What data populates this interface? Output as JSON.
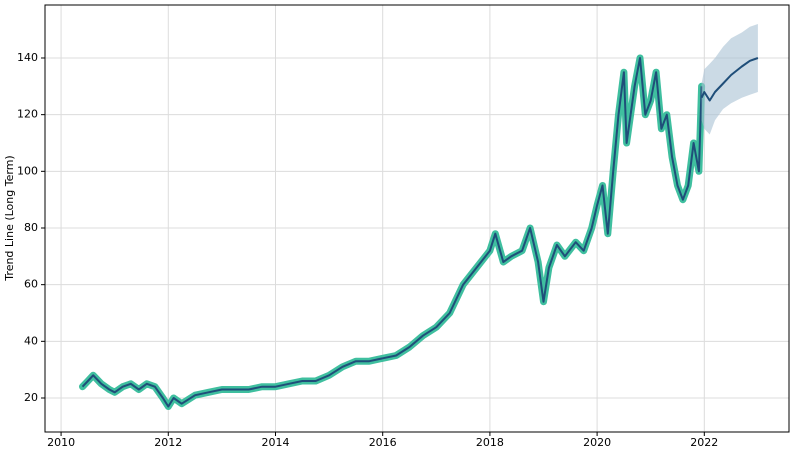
{
  "chart_data": {
    "type": "line",
    "y_label": "Trend Line (Long Term)",
    "xlim": [
      2009.7,
      2023.58
    ],
    "xticks": [
      2010,
      2012,
      2014,
      2016,
      2018,
      2020,
      2022
    ],
    "ylim": [
      8,
      158.7
    ],
    "yticks": [
      20,
      40,
      60,
      80,
      100,
      120,
      140
    ],
    "grid": true,
    "x": [
      2010.4,
      2010.5,
      2010.6,
      2010.75,
      2010.9,
      2011.0,
      2011.15,
      2011.3,
      2011.45,
      2011.6,
      2011.75,
      2011.9,
      2012.0,
      2012.1,
      2012.25,
      2012.5,
      2012.75,
      2013.0,
      2013.25,
      2013.5,
      2013.75,
      2014.0,
      2014.25,
      2014.5,
      2014.75,
      2015.0,
      2015.25,
      2015.5,
      2015.75,
      2016.0,
      2016.25,
      2016.5,
      2016.75,
      2017.0,
      2017.25,
      2017.5,
      2017.75,
      2018.0,
      2018.1,
      2018.25,
      2018.4,
      2018.6,
      2018.75,
      2018.9,
      2019.0,
      2019.1,
      2019.25,
      2019.4,
      2019.6,
      2019.75,
      2019.9,
      2020.0,
      2020.1,
      2020.2,
      2020.3,
      2020.4,
      2020.5,
      2020.55,
      2020.7,
      2020.8,
      2020.9,
      2021.0,
      2021.1,
      2021.2,
      2021.3,
      2021.4,
      2021.5,
      2021.6,
      2021.7,
      2021.8,
      2021.9,
      2021.95,
      2022.0,
      2022.1,
      2022.2,
      2022.35,
      2022.5,
      2022.7,
      2022.85,
      2023.0
    ],
    "series": [
      {
        "color": "#3fbf9f",
        "line_color": "#1f4e79",
        "values": [
          24,
          26,
          28,
          25,
          23,
          22,
          24,
          25,
          23,
          25,
          24,
          20,
          17,
          20,
          18,
          21,
          22,
          23,
          23,
          23,
          24,
          24,
          25,
          26,
          26,
          28,
          31,
          33,
          33,
          34,
          35,
          38,
          42,
          45,
          50,
          60,
          66,
          72,
          78,
          68,
          70,
          72,
          80,
          68,
          54,
          66,
          74,
          70,
          75,
          72,
          80,
          88,
          95,
          78,
          100,
          120,
          135,
          110,
          130,
          140,
          120,
          125,
          135,
          115,
          120,
          105,
          95,
          90,
          95,
          110,
          100,
          130,
          null,
          null,
          null,
          null,
          null,
          null,
          null,
          null
        ]
      },
      {
        "color": "#1f4e79",
        "band_color": "#a9c1d4",
        "values": [
          null,
          null,
          null,
          null,
          null,
          null,
          null,
          null,
          null,
          null,
          null,
          null,
          null,
          null,
          null,
          null,
          null,
          null,
          null,
          null,
          null,
          null,
          null,
          null,
          null,
          null,
          null,
          null,
          null,
          null,
          null,
          null,
          null,
          null,
          null,
          null,
          null,
          null,
          null,
          null,
          null,
          null,
          null,
          null,
          null,
          null,
          null,
          null,
          null,
          null,
          null,
          null,
          null,
          null,
          null,
          null,
          null,
          null,
          null,
          null,
          null,
          null,
          null,
          null,
          null,
          null,
          null,
          null,
          null,
          null,
          null,
          126,
          128,
          125,
          128,
          131,
          134,
          137,
          139,
          140
        ],
        "lower": [
          null,
          null,
          null,
          null,
          null,
          null,
          null,
          null,
          null,
          null,
          null,
          null,
          null,
          null,
          null,
          null,
          null,
          null,
          null,
          null,
          null,
          null,
          null,
          null,
          null,
          null,
          null,
          null,
          null,
          null,
          null,
          null,
          null,
          null,
          null,
          null,
          null,
          null,
          null,
          null,
          null,
          null,
          null,
          null,
          null,
          null,
          null,
          null,
          null,
          null,
          null,
          null,
          null,
          null,
          null,
          null,
          null,
          null,
          null,
          null,
          null,
          null,
          null,
          null,
          null,
          null,
          null,
          null,
          null,
          null,
          null,
          118,
          115,
          113,
          118,
          122,
          124,
          126,
          127,
          128
        ],
        "upper": [
          null,
          null,
          null,
          null,
          null,
          null,
          null,
          null,
          null,
          null,
          null,
          null,
          null,
          null,
          null,
          null,
          null,
          null,
          null,
          null,
          null,
          null,
          null,
          null,
          null,
          null,
          null,
          null,
          null,
          null,
          null,
          null,
          null,
          null,
          null,
          null,
          null,
          null,
          null,
          null,
          null,
          null,
          null,
          null,
          null,
          null,
          null,
          null,
          null,
          null,
          null,
          null,
          null,
          null,
          null,
          null,
          null,
          null,
          null,
          null,
          null,
          null,
          null,
          null,
          null,
          null,
          null,
          null,
          null,
          null,
          null,
          131,
          136,
          138,
          140,
          144,
          147,
          149,
          151,
          152
        ]
      }
    ]
  }
}
